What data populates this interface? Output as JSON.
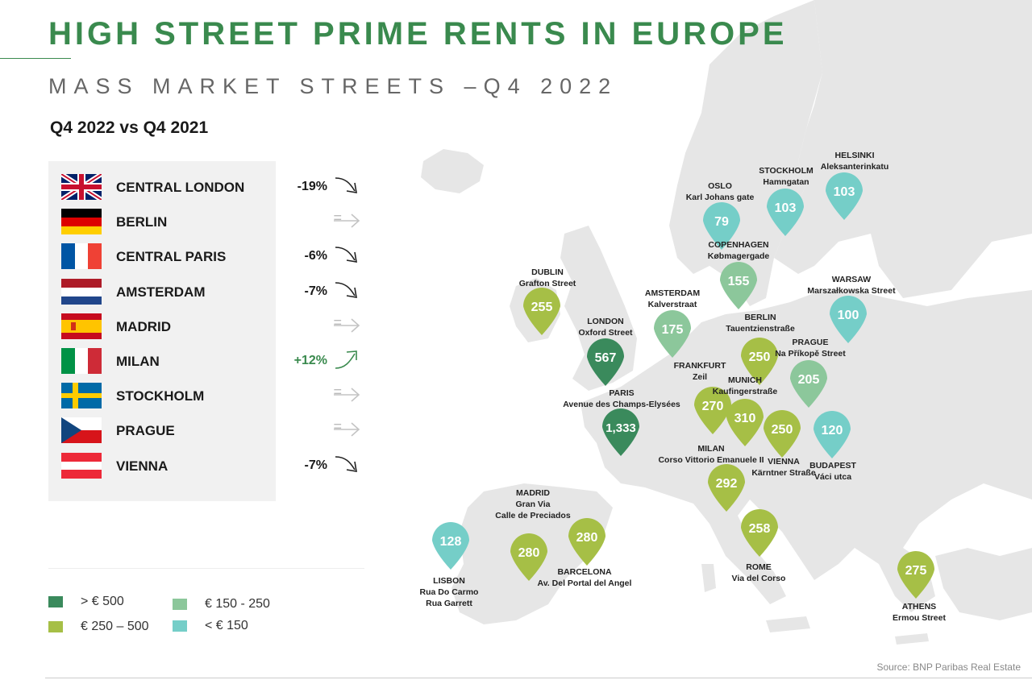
{
  "header": {
    "title": "HIGH STREET PRIME RENTS IN EUROPE",
    "subtitle": "MASS MARKET STREETS –Q4 2022",
    "comparison": "Q4 2022 vs Q4 2021"
  },
  "cities_table": [
    {
      "flag": "uk-flag-icon",
      "name": "CENTRAL LONDON",
      "change": "-19%",
      "trend": "down"
    },
    {
      "flag": "germany-flag-icon",
      "name": "BERLIN",
      "change": "=",
      "trend": "flat"
    },
    {
      "flag": "france-flag-icon",
      "name": "CENTRAL PARIS",
      "change": "-6%",
      "trend": "down"
    },
    {
      "flag": "netherlands-flag-icon",
      "name": "AMSTERDAM",
      "change": "-7%",
      "trend": "down"
    },
    {
      "flag": "spain-flag-icon",
      "name": "MADRID",
      "change": "=",
      "trend": "flat"
    },
    {
      "flag": "italy-flag-icon",
      "name": "MILAN",
      "change": "+12%",
      "trend": "up"
    },
    {
      "flag": "sweden-flag-icon",
      "name": "STOCKHOLM",
      "change": "=",
      "trend": "flat"
    },
    {
      "flag": "czech-flag-icon",
      "name": "PRAGUE",
      "change": "=",
      "trend": "flat"
    },
    {
      "flag": "austria-flag-icon",
      "name": "VIENNA",
      "change": "-7%",
      "trend": "down"
    }
  ],
  "legend": [
    {
      "label": "> € 500",
      "color": "#3a8a5c"
    },
    {
      "label": "€ 250 – 500",
      "color": "#a6bf46"
    },
    {
      "label": "€ 150 - 250",
      "color": "#8cc79b"
    },
    {
      "label": "< € 150",
      "color": "#75cec8"
    }
  ],
  "map_pins": [
    {
      "city": "HELSINKI",
      "street": "Aleksanterinkatu",
      "value": "103",
      "category": "< € 150"
    },
    {
      "city": "STOCKHOLM",
      "street": "Hamngatan",
      "value": "103",
      "category": "< € 150"
    },
    {
      "city": "OSLO",
      "street": "Karl Johans gate",
      "value": "79",
      "category": "< € 150"
    },
    {
      "city": "COPENHAGEN",
      "street": "Købmagergade",
      "value": "155",
      "category": "€ 150 - 250"
    },
    {
      "city": "DUBLIN",
      "street": "Grafton Street",
      "value": "255",
      "category": "€ 250 – 500"
    },
    {
      "city": "AMSTERDAM",
      "street": "Kalverstraat",
      "value": "175",
      "category": "€ 150 - 250"
    },
    {
      "city": "WARSAW",
      "street": "Marszałkowska Street",
      "value": "100",
      "category": "< € 150"
    },
    {
      "city": "LONDON",
      "street": "Oxford Street",
      "value": "567",
      "category": "> € 500"
    },
    {
      "city": "BERLIN",
      "street": "Tauentzienstraße",
      "value": "250",
      "category": "€ 250 – 500"
    },
    {
      "city": "PRAGUE",
      "street": "Na Příkopě Street",
      "value": "205",
      "category": "€ 150 - 250"
    },
    {
      "city": "FRANKFURT",
      "street": "Zeil",
      "value": "270",
      "category": "€ 250 – 500"
    },
    {
      "city": "MUNICH",
      "street": "Kaufingerstraße",
      "value": "310",
      "category": "€ 250 – 500"
    },
    {
      "city": "PARIS",
      "street": "Avenue des Champs-Elysées",
      "value": "1,333",
      "category": "> € 500"
    },
    {
      "city": "VIENNA",
      "street": "Kärntner Straße",
      "value": "250",
      "category": "€ 250 – 500"
    },
    {
      "city": "BUDAPEST",
      "street": "Váci utca",
      "value": "120",
      "category": "< € 150"
    },
    {
      "city": "MILAN",
      "street": "Corso Vittorio Emanuele II",
      "value": "292",
      "category": "€ 250 – 500"
    },
    {
      "city": "ROME",
      "street": "Via del Corso",
      "value": "258",
      "category": "€ 250 – 500"
    },
    {
      "city": "MADRID",
      "street": "Gran Via\nCalle de Preciados",
      "value": "280",
      "category": "€ 250 – 500"
    },
    {
      "city": "BARCELONA",
      "street": "Av. Del Portal del Angel",
      "value": "280",
      "category": "€ 250 – 500"
    },
    {
      "city": "LISBON",
      "street": "Rua Do Carmo\nRua Garrett",
      "value": "128",
      "category": "< € 150"
    },
    {
      "city": "ATHENS",
      "street": "Ermou Street",
      "value": "275",
      "category": "€ 250 – 500"
    }
  ],
  "source": "Source: BNP Paribas Real Estate"
}
